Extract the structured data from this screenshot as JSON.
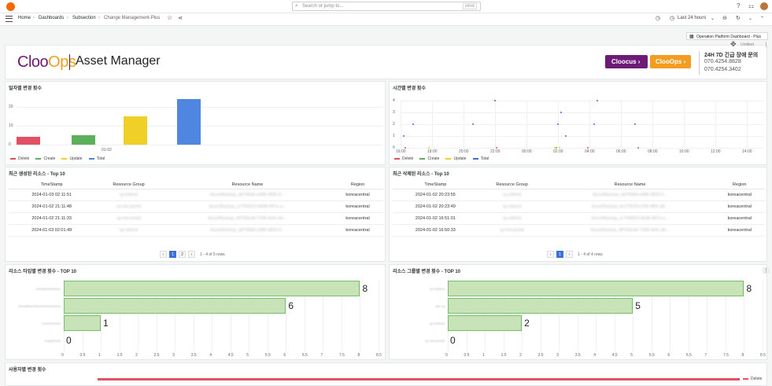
{
  "topbar": {
    "search_placeholder": "Search or jump to...",
    "search_shortcut": "ctrl+k"
  },
  "breadcrumb": {
    "home": "Home",
    "dashboards": "Dashboards",
    "subsection": "Subsection",
    "current": "Change Management-Plus"
  },
  "time_range": "Last 24 hours",
  "op_button": "Operation Platform Dashboard - Plus",
  "untitled": "Untitled",
  "banner": {
    "logo_a": "Cloo",
    "logo_b": "Ops",
    "title": "Asset Manager",
    "btn_cloocus": "Cloocus",
    "btn_clooops": "ClooOps",
    "support": "24H 7D 긴급 장애 문의",
    "phone1": "070.4254.8828",
    "phone2": "070.4254.3402"
  },
  "daily": {
    "title": "일자별 변경 횟수",
    "category": "01-02",
    "y_ticks": [
      "20",
      "10",
      "0"
    ],
    "legend": [
      "Delete",
      "Create",
      "Update",
      "Total"
    ]
  },
  "hourly": {
    "title": "시간별 변경 횟수",
    "y_ticks": [
      "4",
      "3",
      "2",
      "1",
      "0"
    ],
    "x_ticks": [
      "16:00",
      "18:00",
      "20:00",
      "22:00",
      "00:00",
      "02:00",
      "04:00",
      "06:00",
      "08:00",
      "10:00",
      "12:00",
      "14:00"
    ],
    "legend": [
      "Delete",
      "Create",
      "Update",
      "Total"
    ]
  },
  "recent_created": {
    "title": "최근 생성된 리소스 - Top 10",
    "columns": [
      "TimeStamp",
      "Resource Group",
      "Resource Name",
      "Region"
    ],
    "rows": [
      [
        "2024-01-03 02:11:51",
        "rg-mdrest",
        "AzureBackup_a8790b8-a388-4820-9...",
        "koreacentral"
      ],
      [
        "2024-01-02 21:11:48",
        "rg-mw-portal",
        "AzureBackup_a77b6814-5bd8-487a-a...",
        "koreacentral"
      ],
      [
        "2024-01-02 21:11:33",
        "rg-mw-portal",
        "AzureBackup_d9706ea8-7168-4e0c-8e...",
        "koreacentral"
      ],
      [
        "2024-01-03 02:01:49",
        "rg-mdrest",
        "AzureBackup_a8790b8-a388-4820-9...",
        "koreacentral"
      ]
    ],
    "pages": [
      "1",
      "2"
    ],
    "rows_info": "1 - 4 of 5 rows"
  },
  "recent_deleted": {
    "title": "최근 삭제된 리소스 - Top 10",
    "columns": [
      "TimeStamp",
      "Resource Group",
      "Resource Name",
      "Region"
    ],
    "rows": [
      [
        "2024-01-02 20:23:55",
        "rg-mdrest",
        "AzureBackup_a8790b8-a388-4820-9...",
        "koreacentral"
      ],
      [
        "2024-01-02 20:23:49",
        "rg-mdrest",
        "AzureBackup_bc27810f-a765-4f0e-a8...",
        "koreacentral"
      ],
      [
        "2024-01-02 16:51:01",
        "rg-mdrest",
        "AzureBackup_a77b6814-5bd8-487a-a...",
        "koreacentral"
      ],
      [
        "2024-01-02 16:50:33",
        "rg-mw-portal",
        "AzureBackup_d9706ea8-7168-4e0c-8e...",
        "koreacentral"
      ]
    ],
    "pages": [
      "1"
    ],
    "rows_info": "1 - 4 of 4 rows"
  },
  "by_type": {
    "title": "리소스 타입별 변경 횟수 - TOP 10",
    "categories": [
      "virtualmachines",
      "virtualmachines/extensions",
      "connections",
      "snapshots"
    ],
    "values": [
      8,
      6,
      1,
      0
    ],
    "x_ticks": [
      "0",
      "0.5",
      "1",
      "1.5",
      "2",
      "2.5",
      "3",
      "3.5",
      "4",
      "4.5",
      "5",
      "5.5",
      "6",
      "6.5",
      "7",
      "7.5",
      "8",
      "8.5"
    ]
  },
  "by_group": {
    "title": "리소스 그룹별 변경 횟수 - TOP 10",
    "categories": [
      "rg-mdrest",
      "asr-rg",
      "rg-mdrest",
      "rg-mw-portal"
    ],
    "values": [
      8,
      5,
      2,
      0
    ],
    "x_ticks": [
      "0",
      "0.5",
      "1",
      "1.5",
      "2",
      "2.5",
      "3",
      "3.5",
      "4",
      "4.5",
      "5",
      "5.5",
      "6",
      "6.5",
      "7",
      "7.5",
      "8",
      "8.5"
    ]
  },
  "by_user": {
    "title": "사용자별 변경 횟수",
    "legend": "Delete"
  },
  "chart_data": [
    {
      "type": "bar",
      "title": "일자별 변경 횟수",
      "categories": [
        "01-02"
      ],
      "series": [
        {
          "name": "Delete",
          "values": [
            4
          ]
        },
        {
          "name": "Create",
          "values": [
            5
          ]
        },
        {
          "name": "Update",
          "values": [
            15
          ]
        },
        {
          "name": "Total",
          "values": [
            24
          ]
        }
      ],
      "ylim": [
        0,
        25
      ],
      "colors": [
        "#e05263",
        "#5eaf5b",
        "#f0d028",
        "#4f87e0"
      ]
    },
    {
      "type": "scatter",
      "title": "시간별 변경 횟수",
      "ylim": [
        0,
        4
      ],
      "series": [
        {
          "name": "Delete",
          "points": [
            [
              16.3,
              0
            ],
            [
              22.1,
              0
            ],
            [
              3.9,
              0
            ],
            [
              7.1,
              0
            ]
          ]
        },
        {
          "name": "Create",
          "points": [
            [
              1.9,
              0
            ],
            [
              7.1,
              0
            ]
          ]
        },
        {
          "name": "Update",
          "points": [
            [
              17.8,
              0
            ],
            [
              1.8,
              0
            ],
            [
              2.1,
              0
            ]
          ]
        },
        {
          "name": "Total",
          "points": [
            [
              16.2,
              1
            ],
            [
              16.8,
              2
            ],
            [
              20.6,
              2
            ],
            [
              22.0,
              4
            ],
            [
              2.0,
              2
            ],
            [
              2.2,
              3
            ],
            [
              2.5,
              1
            ],
            [
              4.3,
              2
            ],
            [
              4.5,
              4
            ],
            [
              6.9,
              2
            ]
          ]
        }
      ]
    },
    {
      "type": "bar",
      "title": "리소스 타입별 변경 횟수 - TOP 10",
      "orientation": "horizontal",
      "categories": [
        "virtualmachines",
        "virtualmachines/extensions",
        "connections",
        "snapshots"
      ],
      "values": [
        8,
        6,
        1,
        0
      ],
      "xlim": [
        0,
        8.5
      ]
    },
    {
      "type": "bar",
      "title": "리소스 그룹별 변경 횟수 - TOP 10",
      "orientation": "horizontal",
      "categories": [
        "rg-mdrest",
        "asr-rg",
        "rg-mdrest",
        "rg-mw-portal"
      ],
      "values": [
        8,
        5,
        2,
        0
      ],
      "xlim": [
        0,
        8.5
      ]
    }
  ]
}
